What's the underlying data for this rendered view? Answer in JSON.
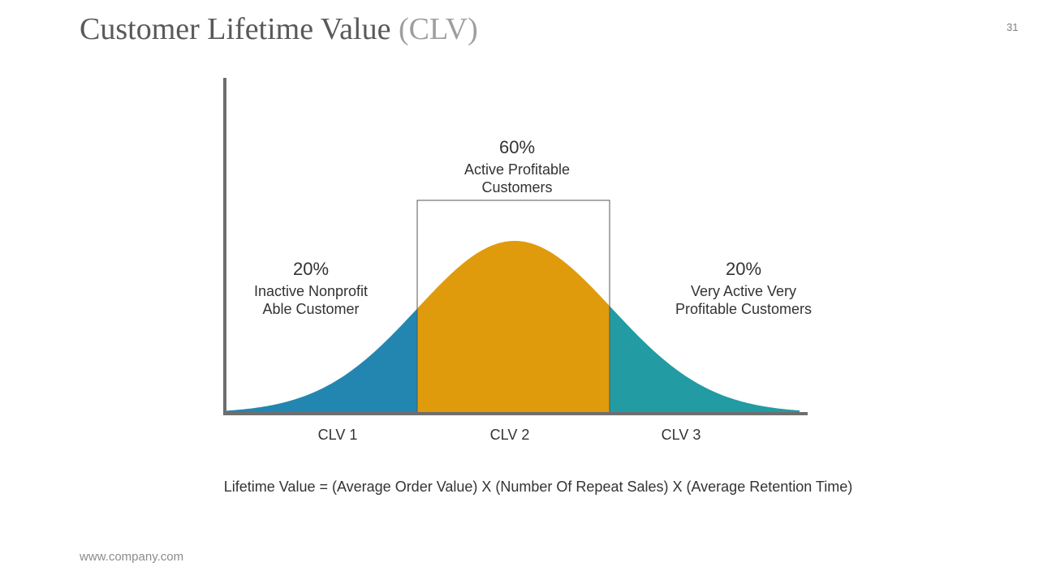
{
  "title": {
    "main": "Customer Lifetime Value",
    "accent": "(CLV)"
  },
  "page_number": "31",
  "segments": [
    {
      "percent": "20%",
      "line1": "Inactive Nonprofit",
      "line2": "Able Customer",
      "color": "#2386b0"
    },
    {
      "percent": "60%",
      "line1": "Active Profitable",
      "line2": "Customers",
      "color": "#e09b0c"
    },
    {
      "percent": "20%",
      "line1": "Very Active Very",
      "line2": "Profitable Customers",
      "color": "#229ba3"
    }
  ],
  "axis_labels": [
    "CLV 1",
    "CLV 2",
    "CLV 3"
  ],
  "formula": "Lifetime Value = (Average Order Value) X (Number Of Repeat Sales) X (Average Retention Time)",
  "footer": "www.company.com"
}
